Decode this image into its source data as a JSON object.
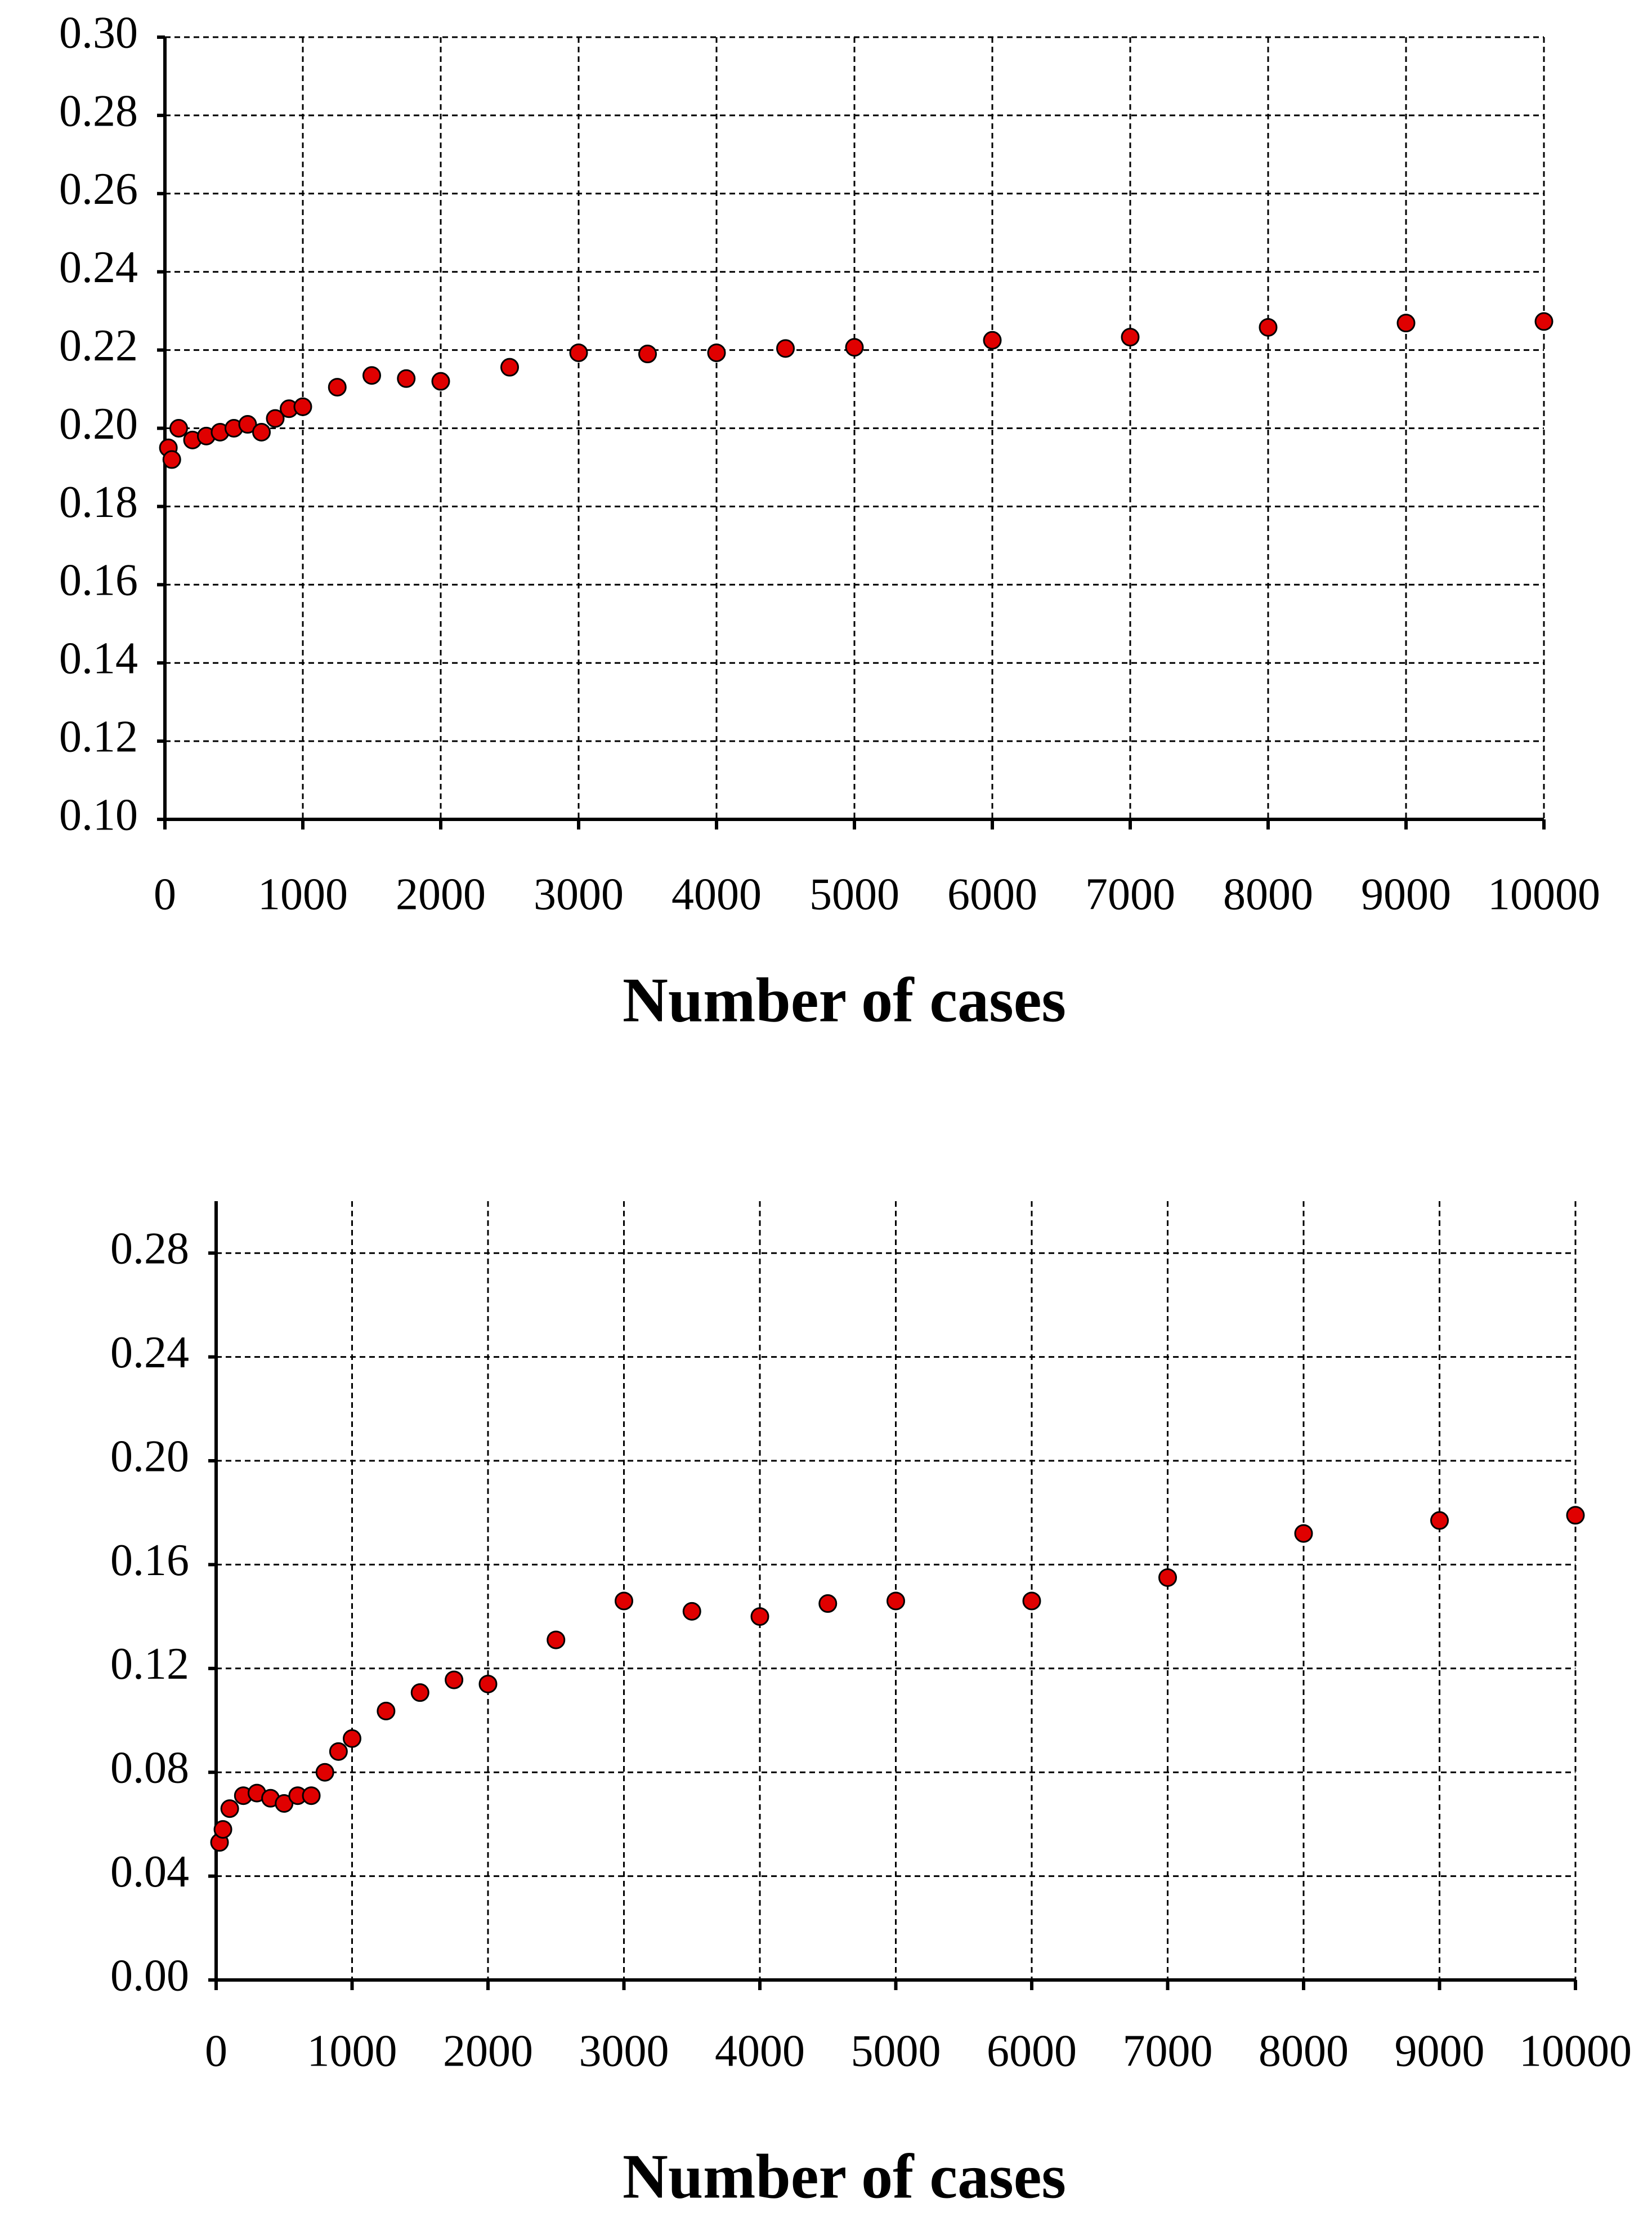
{
  "chart_data": [
    {
      "type": "scatter",
      "x_label": "Number of cases",
      "color": "#e00000",
      "grid": true,
      "x": [
        25,
        50,
        100,
        200,
        300,
        400,
        500,
        600,
        700,
        800,
        900,
        1000,
        1250,
        1500,
        1750,
        2000,
        2500,
        3000,
        3500,
        4000,
        4500,
        5000,
        6000,
        7000,
        8000,
        9000,
        10000
      ],
      "y": [
        0.195,
        0.192,
        0.2,
        0.197,
        0.198,
        0.199,
        0.2,
        0.201,
        0.199,
        0.2025,
        0.205,
        0.2055,
        0.2105,
        0.2135,
        0.2127,
        0.212,
        0.2156,
        0.2193,
        0.219,
        0.2193,
        0.2204,
        0.2207,
        0.2225,
        0.2233,
        0.2258,
        0.2269,
        0.2273
      ],
      "xlim": [
        0,
        10000
      ],
      "ylim": [
        0.1,
        0.3
      ],
      "xticks": [
        0,
        1000,
        2000,
        3000,
        4000,
        5000,
        6000,
        7000,
        8000,
        9000,
        10000
      ],
      "yticks": [
        {
          "value": 0.1,
          "label": "0.10"
        },
        {
          "value": 0.12,
          "label": "0.12"
        },
        {
          "value": 0.14,
          "label": "0.14"
        },
        {
          "value": 0.16,
          "label": "0.16"
        },
        {
          "value": 0.18,
          "label": "0.18"
        },
        {
          "value": 0.2,
          "label": "0.20"
        },
        {
          "value": 0.22,
          "label": "0.22"
        },
        {
          "value": 0.24,
          "label": "0.24"
        },
        {
          "value": 0.26,
          "label": "0.26"
        },
        {
          "value": 0.28,
          "label": "0.28"
        },
        {
          "value": 0.3,
          "label": "0.30"
        }
      ]
    },
    {
      "type": "scatter",
      "x_label": "Number of cases",
      "color": "#e00000",
      "grid": true,
      "x": [
        25,
        50,
        100,
        200,
        300,
        400,
        500,
        600,
        700,
        800,
        900,
        1000,
        1250,
        1500,
        1750,
        2000,
        2500,
        3000,
        3500,
        4000,
        4500,
        5000,
        6000,
        7000,
        8000,
        9000,
        10000
      ],
      "y": [
        0.053,
        0.058,
        0.066,
        0.071,
        0.072,
        0.07,
        0.068,
        0.071,
        0.071,
        0.08,
        0.088,
        0.093,
        0.1036,
        0.1107,
        0.1156,
        0.114,
        0.131,
        0.146,
        0.142,
        0.14,
        0.145,
        0.146,
        0.146,
        0.155,
        0.172,
        0.177,
        0.179
      ],
      "xlim": [
        0,
        10000
      ],
      "ylim": [
        0,
        0.3
      ],
      "xticks": [
        0,
        1000,
        2000,
        3000,
        4000,
        5000,
        6000,
        7000,
        8000,
        9000,
        10000
      ],
      "yticks": [
        {
          "value": 0,
          "label": "0.00"
        },
        {
          "value": 0.04,
          "label": "0.04"
        },
        {
          "value": 0.08,
          "label": "0.08"
        },
        {
          "value": 0.12,
          "label": "0.12"
        },
        {
          "value": 0.16,
          "label": "0.16"
        },
        {
          "value": 0.2,
          "label": "0.20"
        },
        {
          "value": 0.24,
          "label": "0.24"
        },
        {
          "value": 0.28,
          "label": "0.28"
        }
      ]
    }
  ]
}
